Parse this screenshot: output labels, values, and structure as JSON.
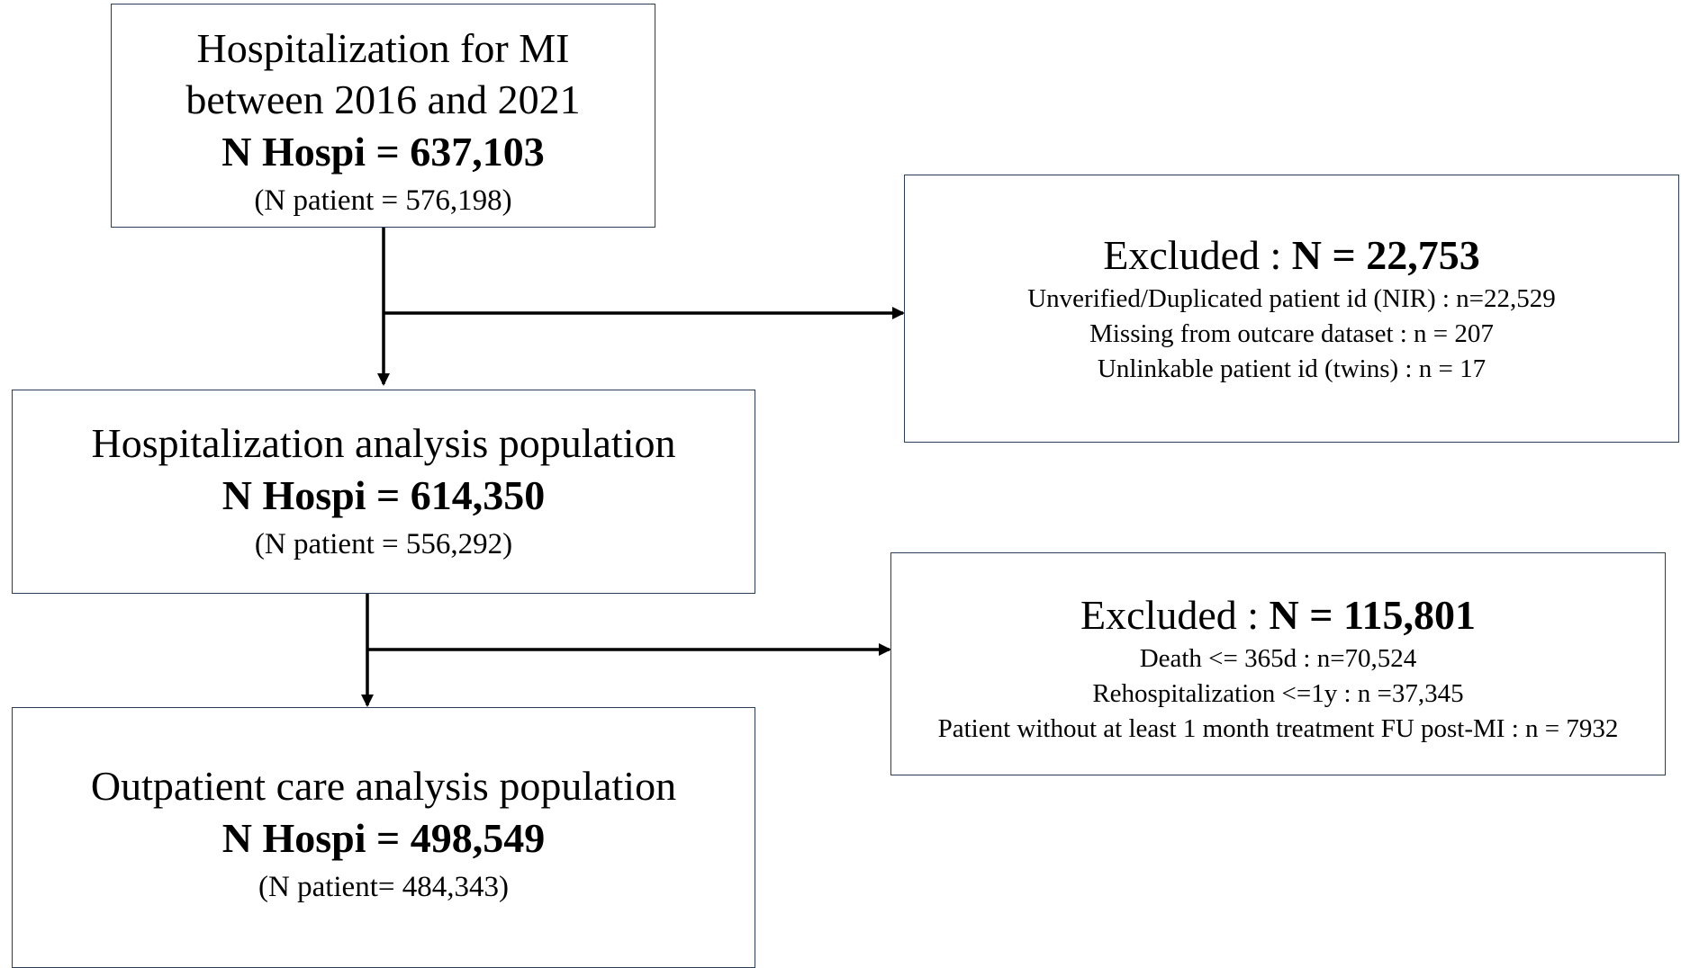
{
  "box1": {
    "line1": "Hospitalization for MI",
    "line2": "between 2016 and 2021",
    "count": "N Hospi =  637,103",
    "patients": "(N patient =  576,198)"
  },
  "exclusion1": {
    "label": "Excluded : ",
    "count": "N = 22,753",
    "items": [
      "Unverified/Duplicated patient id (NIR) : n=22,529",
      "Missing from outcare dataset : n = 207",
      "Unlinkable  patient id (twins) : n = 17"
    ]
  },
  "box2": {
    "line1": "Hospitalization analysis population",
    "count": "N Hospi = 614,350",
    "patients": "(N patient =  556,292)"
  },
  "exclusion2": {
    "label": "Excluded : ",
    "count": "N = 115,801",
    "items": [
      "Death <= 365d : n=70,524",
      "Rehospitalization <=1y : n =37,345",
      "Patient without at least 1 month treatment FU post-MI : n = 7932"
    ]
  },
  "box3": {
    "line1": "Outpatient care analysis population",
    "count": "N Hospi =  498,549",
    "patients": "(N patient= 484,343)"
  }
}
